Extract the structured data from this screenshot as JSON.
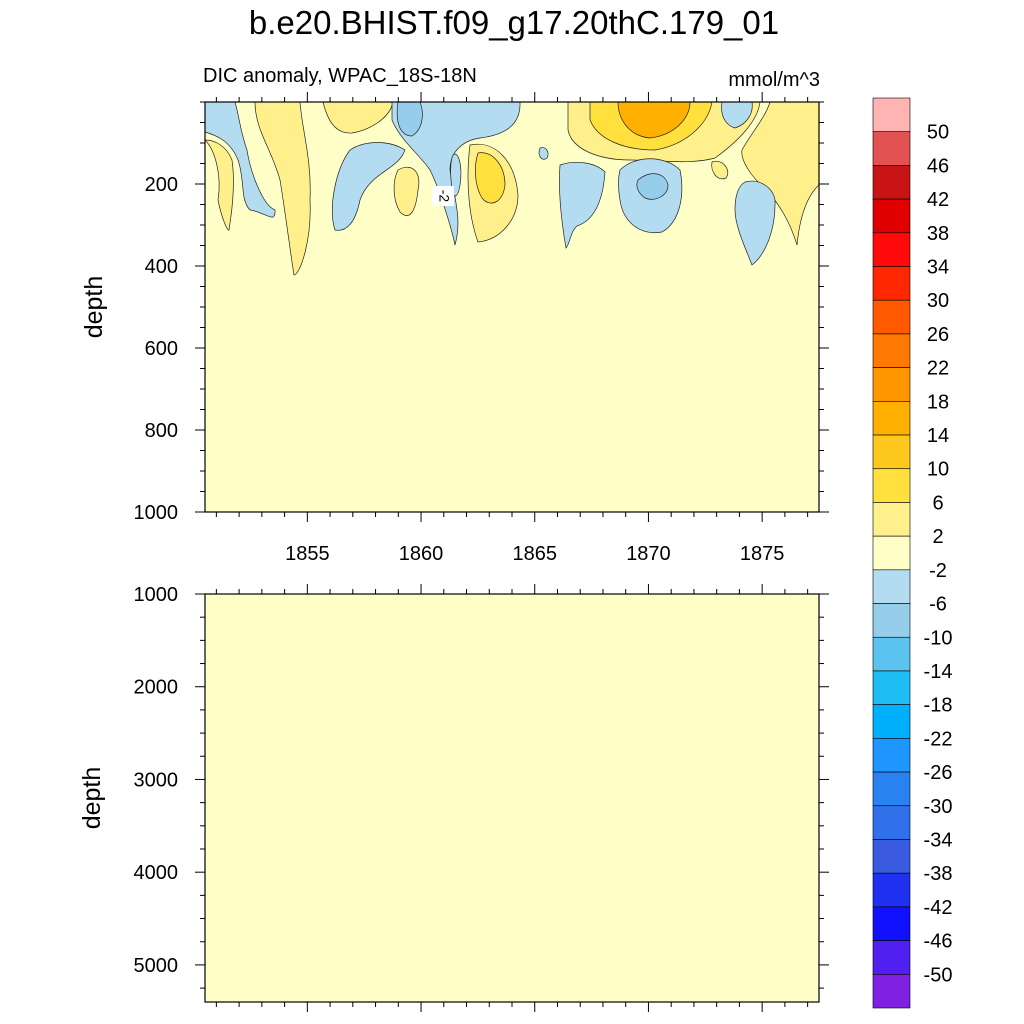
{
  "chart_data": {
    "type": "heatmap",
    "title": "b.e20.BHIST.f09_g17.20thC.179_01",
    "variable_label": "DIC anomaly, WPAC_18S-18N",
    "units": "mmol/m^3",
    "x_ticks": [
      "1855",
      "1860",
      "1865",
      "1870",
      "1875"
    ],
    "x_tick_values": [
      1855,
      1860,
      1865,
      1870,
      1875
    ],
    "xlim": [
      1850.5,
      1877.5
    ],
    "contour_label": "-2",
    "top_panel": {
      "ylabel": "depth",
      "ylim": [
        0,
        1000
      ],
      "y_ticks": [
        "200",
        "400",
        "600",
        "800",
        "1000"
      ],
      "y_tick_values": [
        200,
        400,
        600,
        800,
        1000
      ],
      "background_level": "-2 to 2"
    },
    "bottom_panel": {
      "ylabel": "depth",
      "ylim": [
        1000,
        5400
      ],
      "y_ticks": [
        "1000",
        "2000",
        "3000",
        "4000",
        "5000"
      ],
      "y_tick_values": [
        1000,
        2000,
        3000,
        4000,
        5000
      ],
      "background_level": "-2 to 2"
    },
    "colorbar": {
      "labels": [
        "50",
        "46",
        "42",
        "38",
        "34",
        "30",
        "26",
        "22",
        "18",
        "14",
        "10",
        "6",
        "2",
        "-2",
        "-6",
        "-10",
        "-14",
        "-18",
        "-22",
        "-26",
        "-30",
        "-34",
        "-38",
        "-42",
        "-46",
        "-50"
      ],
      "colors": [
        "#ffb4b4",
        "#e25252",
        "#c81414",
        "#e00000",
        "#ff0a0a",
        "#ff2800",
        "#ff5a00",
        "#ff7800",
        "#ff9600",
        "#ffb000",
        "#ffc81e",
        "#ffe03c",
        "#fff08c",
        "#ffffc8",
        "#b4dcf0",
        "#96cdeb",
        "#5ac3f0",
        "#1ebef5",
        "#00b0ff",
        "#1e96ff",
        "#2882f0",
        "#3070ea",
        "#3a5ae0",
        "#2030f0",
        "#1010ff",
        "#5020f0",
        "#8020e0"
      ]
    }
  }
}
